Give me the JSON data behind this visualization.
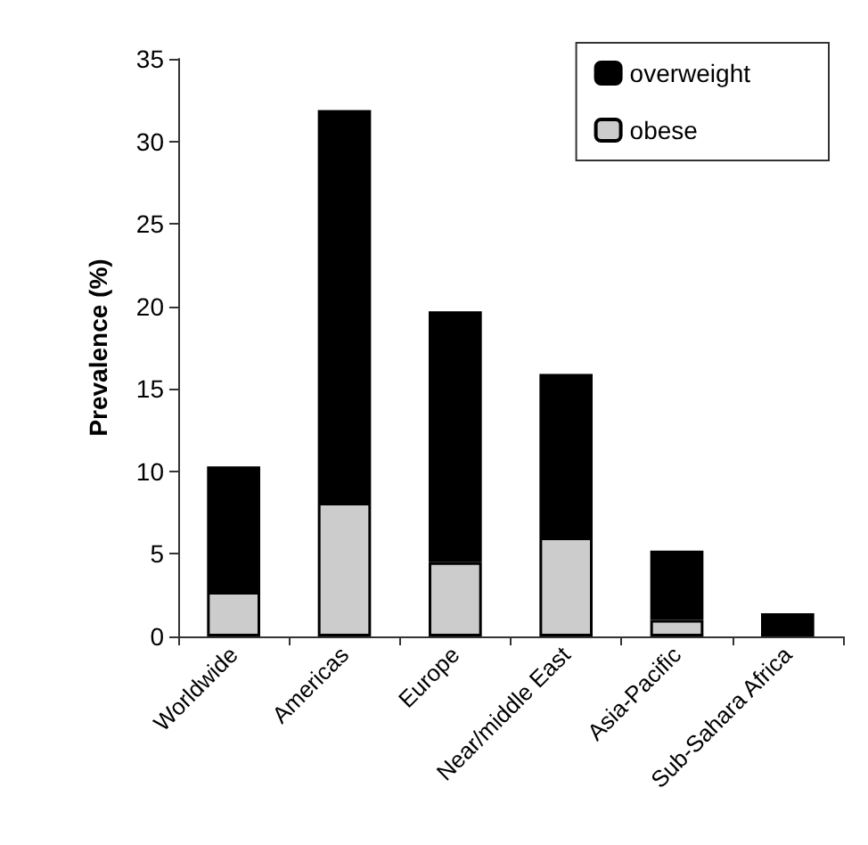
{
  "chart_data": {
    "type": "bar",
    "ylabel": "Prevalence (%)",
    "categories": [
      "Worldwide",
      "Americas",
      "Europe",
      "Near/middle East",
      "Asia-Pacific",
      "Sub-Sahara Africa"
    ],
    "stacked": true,
    "series": [
      {
        "name": "obese",
        "color": "#cccccc",
        "values": [
          2.7,
          8.1,
          4.5,
          6.0,
          1.0,
          null
        ]
      },
      {
        "name": "overweight",
        "color": "#000000",
        "values": [
          7.6,
          23.8,
          15.2,
          9.9,
          4.2,
          1.4
        ]
      }
    ],
    "ylim": [
      0,
      35
    ],
    "yticks": [
      0,
      5,
      10,
      15,
      20,
      25,
      30,
      35
    ],
    "grid": false,
    "legend": "top right"
  }
}
